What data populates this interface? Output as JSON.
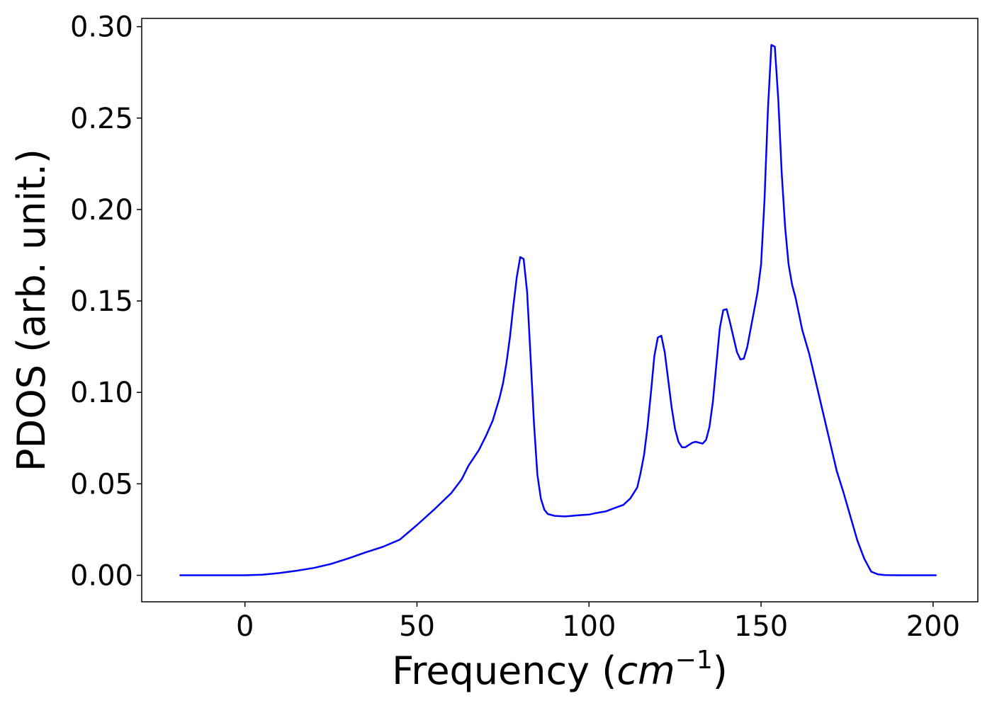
{
  "chart_data": {
    "type": "line",
    "title": "",
    "xlabel": "Frequency (",
    "xlabel_unit_base": "cm",
    "xlabel_unit_exp": "−1",
    "xlabel_close": ")",
    "ylabel": "PDOS (arb. unit.)",
    "xlim": [
      -30,
      213
    ],
    "ylim": [
      -0.0145,
      0.3045
    ],
    "x_ticks": [
      0,
      50,
      100,
      150,
      200
    ],
    "x_tick_labels": [
      "0",
      "50",
      "100",
      "150",
      "200"
    ],
    "y_ticks": [
      0.0,
      0.05,
      0.1,
      0.15,
      0.2,
      0.25,
      0.3
    ],
    "y_tick_labels": [
      "0.00",
      "0.05",
      "0.10",
      "0.15",
      "0.20",
      "0.25",
      "0.30"
    ],
    "grid": false,
    "legend": "none",
    "series": [
      {
        "color": "#0000ff",
        "x": [
          -19,
          -10,
          0,
          5,
          10,
          15,
          20,
          25,
          30,
          35,
          40,
          45,
          50,
          55,
          60,
          63,
          65,
          68,
          70,
          72,
          74,
          75,
          76,
          77,
          78,
          79,
          80,
          81,
          82,
          83,
          84,
          85,
          86,
          87,
          88,
          90,
          93,
          95,
          97,
          100,
          102,
          105,
          107,
          110,
          112,
          114,
          115,
          116,
          117,
          118,
          119,
          120,
          121,
          122,
          123,
          124,
          125,
          126,
          127,
          128,
          130,
          131,
          133,
          134,
          135,
          136,
          137,
          138,
          139,
          140,
          141,
          142,
          143,
          144,
          145,
          146,
          147,
          148,
          149,
          150,
          151,
          152,
          153,
          154,
          155,
          156,
          157,
          158,
          159,
          160,
          161,
          162,
          164,
          166,
          168,
          170,
          172,
          174,
          176,
          178,
          180,
          182,
          184,
          186,
          190,
          195,
          201
        ],
        "y": [
          0.0,
          0.0,
          0.0,
          0.0003,
          0.0012,
          0.0025,
          0.004,
          0.0062,
          0.0092,
          0.0125,
          0.0155,
          0.0195,
          0.0275,
          0.036,
          0.045,
          0.0525,
          0.06,
          0.0685,
          0.076,
          0.0845,
          0.097,
          0.105,
          0.116,
          0.13,
          0.147,
          0.163,
          0.174,
          0.173,
          0.155,
          0.12,
          0.083,
          0.055,
          0.042,
          0.036,
          0.0335,
          0.0325,
          0.0322,
          0.0325,
          0.0328,
          0.0332,
          0.034,
          0.035,
          0.0365,
          0.0385,
          0.042,
          0.048,
          0.056,
          0.066,
          0.081,
          0.1,
          0.12,
          0.13,
          0.131,
          0.122,
          0.107,
          0.092,
          0.08,
          0.073,
          0.07,
          0.07,
          0.0725,
          0.073,
          0.072,
          0.074,
          0.081,
          0.095,
          0.115,
          0.135,
          0.145,
          0.1455,
          0.138,
          0.13,
          0.122,
          0.118,
          0.1185,
          0.125,
          0.135,
          0.145,
          0.155,
          0.17,
          0.205,
          0.255,
          0.29,
          0.289,
          0.26,
          0.22,
          0.19,
          0.17,
          0.159,
          0.152,
          0.143,
          0.134,
          0.121,
          0.105,
          0.089,
          0.073,
          0.057,
          0.045,
          0.032,
          0.019,
          0.009,
          0.002,
          0.0005,
          0.0001,
          0.0,
          0.0,
          0.0
        ]
      }
    ]
  }
}
